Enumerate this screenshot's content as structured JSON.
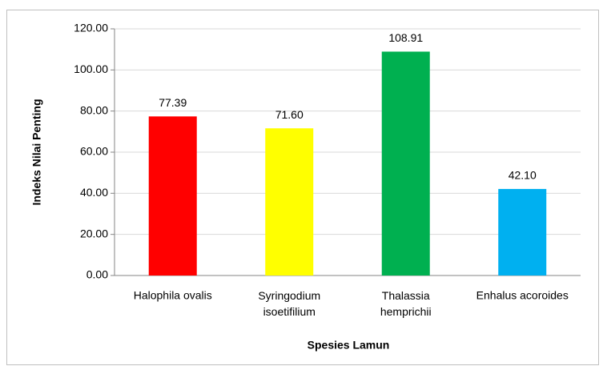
{
  "chart_data": {
    "type": "bar",
    "x_label": "Spesies Lamun",
    "y_label": "Indeks Nilai Penting",
    "categories": [
      "Halophila ovalis",
      "Syringodium isoetifilium",
      "Thalassia hemprichii",
      "Enhalus acoroides"
    ],
    "values": [
      77.39,
      71.6,
      108.91,
      42.1
    ],
    "value_labels": [
      "77.39",
      "71.60",
      "108.91",
      "42.10"
    ],
    "colors": [
      "#ff0000",
      "#ffff00",
      "#00b050",
      "#00b0f0"
    ],
    "ylim": [
      0,
      120
    ],
    "yticks": [
      {
        "value": 0,
        "label": "0.00"
      },
      {
        "value": 20,
        "label": "20.00"
      },
      {
        "value": 40,
        "label": "40.00"
      },
      {
        "value": 60,
        "label": "60.00"
      },
      {
        "value": 80,
        "label": "80.00"
      },
      {
        "value": 100,
        "label": "100.00"
      },
      {
        "value": 120,
        "label": "120.00"
      }
    ],
    "grid": true
  }
}
